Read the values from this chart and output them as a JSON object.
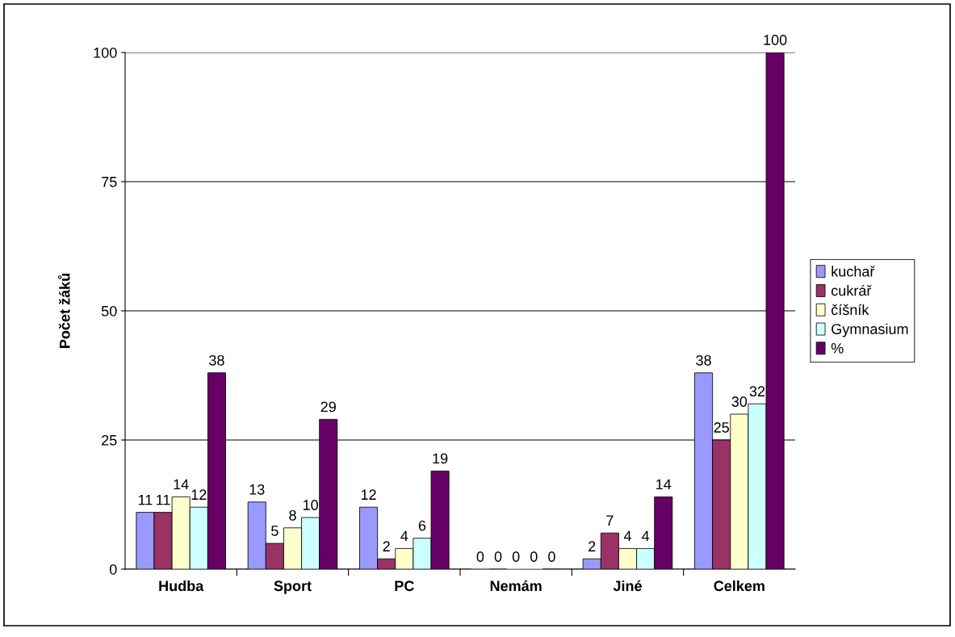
{
  "chart_data": {
    "type": "bar",
    "ylabel": "Počet žáků",
    "categories": [
      "Hudba",
      "Sport",
      "PC",
      "Nemám",
      "Jiné",
      "Celkem"
    ],
    "series": [
      {
        "name": "kuchař",
        "color": "#9999ff",
        "values": [
          11,
          13,
          12,
          0,
          2,
          38
        ]
      },
      {
        "name": "cukrář",
        "color": "#993366",
        "values": [
          11,
          5,
          2,
          0,
          7,
          25
        ]
      },
      {
        "name": "číšník",
        "color": "#ffffcc",
        "values": [
          14,
          8,
          4,
          0,
          4,
          30
        ]
      },
      {
        "name": "Gymnasium",
        "color": "#ccffff",
        "values": [
          12,
          10,
          6,
          0,
          4,
          32
        ]
      },
      {
        "name": "%",
        "color": "#660066",
        "values": [
          38,
          29,
          19,
          0,
          14,
          100
        ]
      }
    ],
    "ylim": [
      0,
      100
    ],
    "yticks": [
      0,
      25,
      50,
      75,
      100
    ],
    "grid": "y",
    "legend": "right",
    "data_labels": true
  }
}
